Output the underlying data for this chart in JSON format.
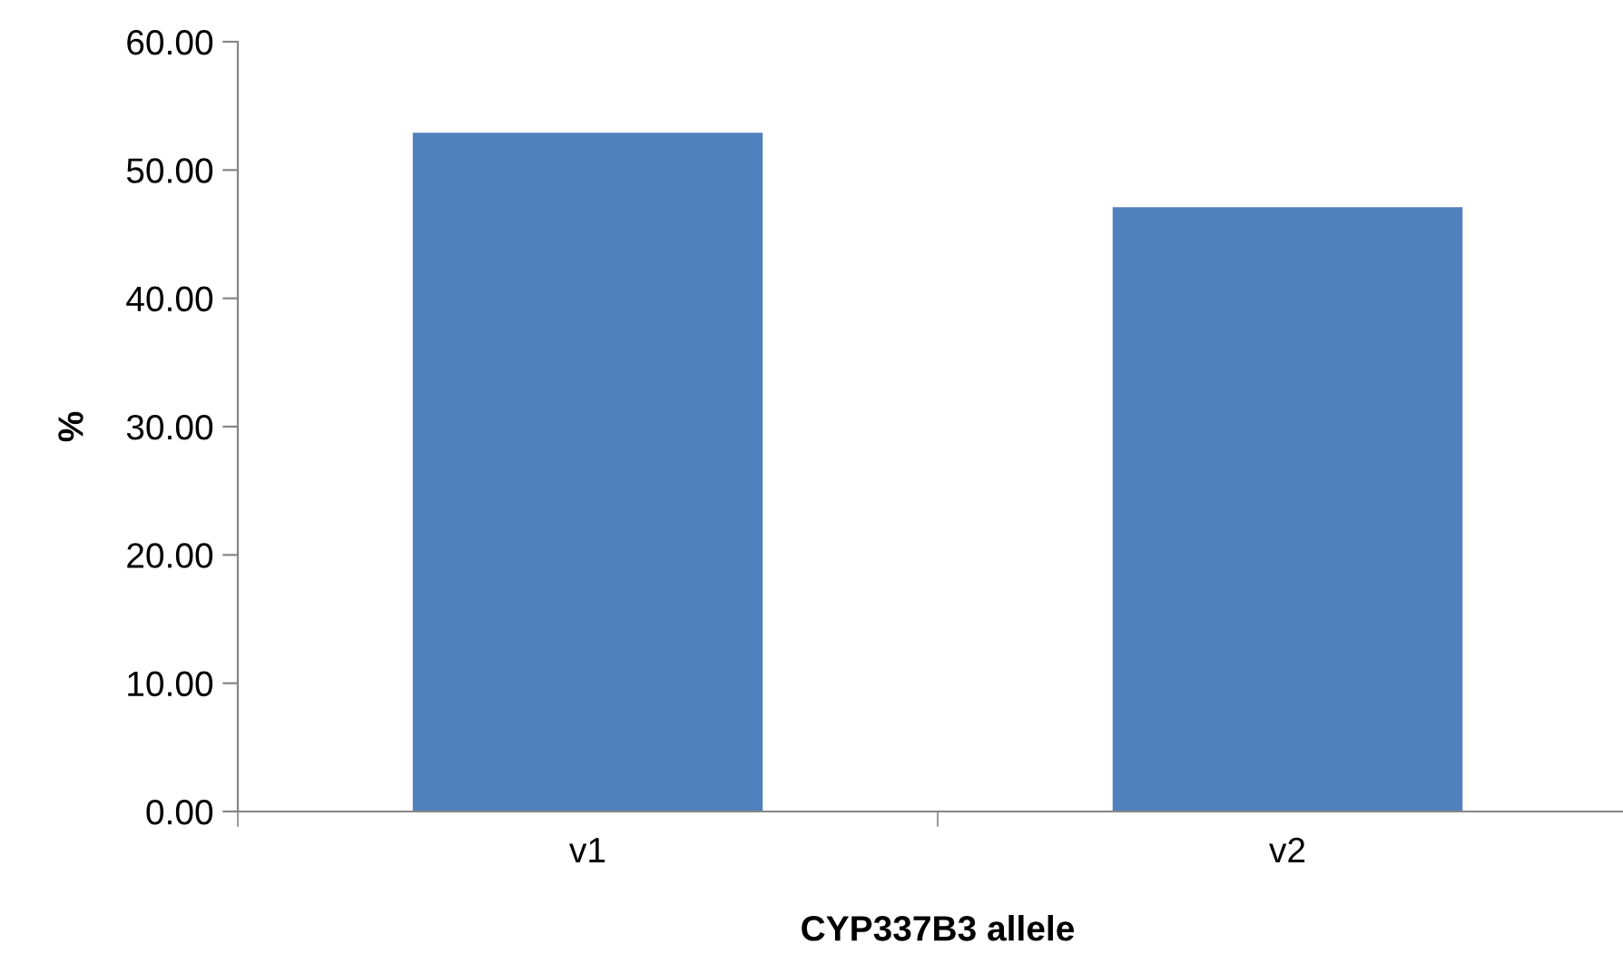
{
  "chart_data": {
    "type": "bar",
    "xlabel": "CYP337B3 allele",
    "ylabel": "%",
    "categories": [
      "v1",
      "v2"
    ],
    "series": [
      {
        "color": "#4f81bd",
        "values": [
          52.9,
          47.1
        ]
      }
    ],
    "ylim": [
      0,
      60
    ],
    "yticks": [
      {
        "value": 0,
        "label": "0.00"
      },
      {
        "value": 10,
        "label": "10.00"
      },
      {
        "value": 20,
        "label": "20.00"
      },
      {
        "value": 30,
        "label": "30.00"
      },
      {
        "value": 40,
        "label": "40.00"
      },
      {
        "value": 50,
        "label": "50.00"
      },
      {
        "value": 60,
        "label": "60.00"
      }
    ],
    "grid": false
  }
}
